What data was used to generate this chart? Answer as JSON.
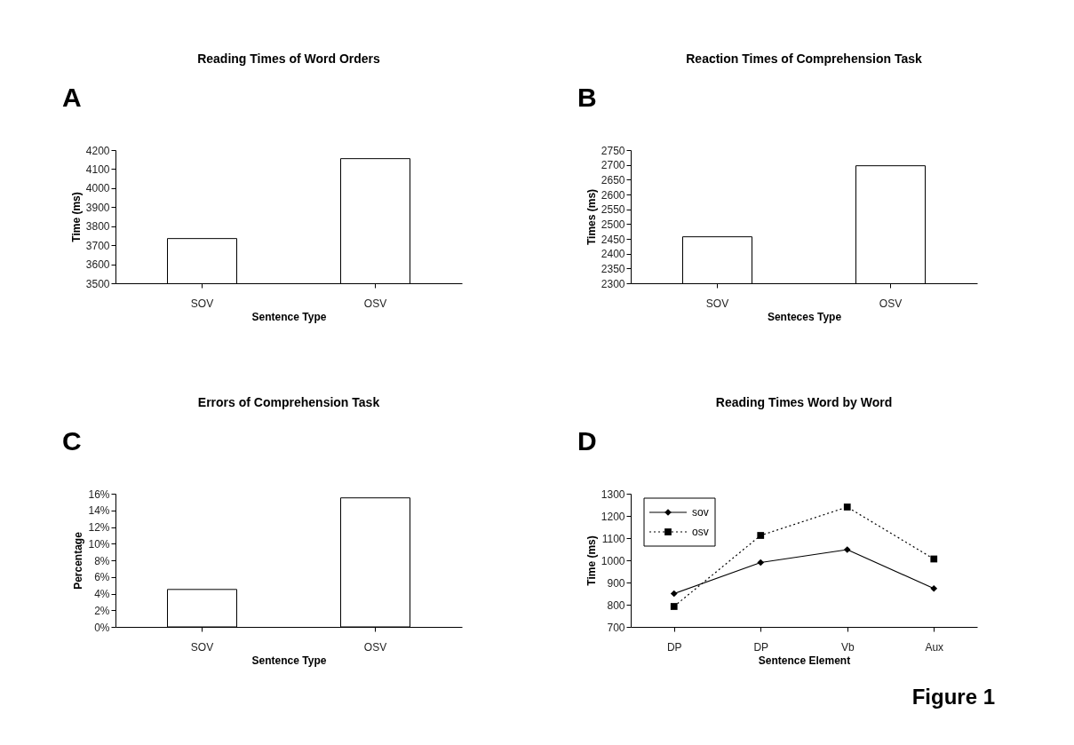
{
  "chart_data": [
    {
      "type": "bar",
      "title": "Reading Times of Word Orders",
      "xlabel": "Sentence Type",
      "ylabel": "Time (ms)",
      "categories": [
        "SOV",
        "OSV"
      ],
      "values": [
        3735,
        4155
      ],
      "color": "#ffffff",
      "ylim": [
        3500,
        4200
      ],
      "yticks": [
        3500,
        3600,
        3700,
        3800,
        3900,
        4000,
        4100,
        4200
      ],
      "grid": false,
      "annotations": [
        "A"
      ]
    },
    {
      "type": "bar",
      "title": "Reaction Times of Comprehension Task",
      "xlabel": "Senteces Type",
      "ylabel": "Times (ms)",
      "categories": [
        "SOV",
        "OSV"
      ],
      "values": [
        2457,
        2697
      ],
      "color": "#ffffff",
      "ylim": [
        2300,
        2750
      ],
      "yticks": [
        2300,
        2350,
        2400,
        2450,
        2500,
        2550,
        2600,
        2650,
        2700,
        2750
      ],
      "grid": false,
      "annotations": [
        "B"
      ]
    },
    {
      "type": "bar",
      "title": "Errors of Comprehension Task",
      "xlabel": "Sentence Type",
      "ylabel": "Percentage",
      "categories": [
        "SOV",
        "OSV"
      ],
      "values": [
        4.5,
        15.5
      ],
      "color": "#ffffff",
      "ylim": [
        0,
        16
      ],
      "yticks": [
        {
          "value": 0,
          "label": "0%"
        },
        {
          "value": 2,
          "label": "2%"
        },
        {
          "value": 4,
          "label": "4%"
        },
        {
          "value": 6,
          "label": "6%"
        },
        {
          "value": 8,
          "label": "8%"
        },
        {
          "value": 10,
          "label": "10%"
        },
        {
          "value": 12,
          "label": "12%"
        },
        {
          "value": 14,
          "label": "14%"
        },
        {
          "value": 16,
          "label": "16%"
        }
      ],
      "grid": false,
      "annotations": [
        "C"
      ]
    },
    {
      "type": "line",
      "title": "Reading Times Word by Word",
      "xlabel": "Sentence Element",
      "ylabel": "Time (ms)",
      "categories": [
        "DP",
        "DP",
        "Vb",
        "Aux"
      ],
      "series": [
        {
          "name": "sov",
          "color": "#000000",
          "values": [
            850,
            990,
            1048,
            873
          ],
          "marker": "diamond",
          "line_style": "solid"
        },
        {
          "name": "osv",
          "color": "#000000",
          "values": [
            792,
            1112,
            1240,
            1006
          ],
          "marker": "square",
          "line_style": "dotted"
        }
      ],
      "ylim": [
        700,
        1300
      ],
      "yticks": [
        700,
        800,
        900,
        1000,
        1100,
        1200,
        1300
      ],
      "grid": false,
      "legend": "top left",
      "annotations": [
        "D",
        "Figure 1"
      ]
    }
  ]
}
